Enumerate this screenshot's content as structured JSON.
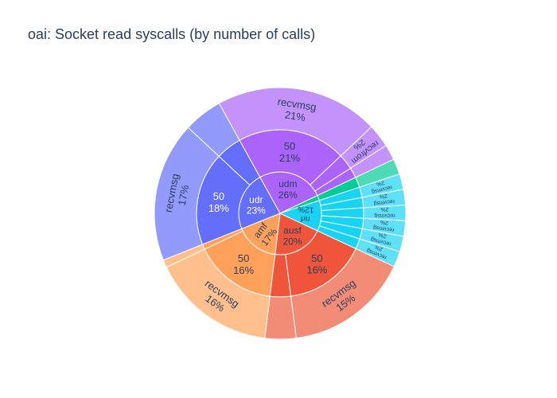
{
  "chart_data": {
    "type": "sunburst",
    "title": "oai: Socket read syscalls (by number of calls)",
    "nodes": [
      {
        "label": "ausf",
        "percent": "20%",
        "value": 20,
        "color": "#EF553B",
        "children": [
          {
            "label": "50",
            "percent": "16%",
            "value": 16,
            "color": "#EF553B",
            "children": [
              {
                "label": "recvmsg",
                "percent": "15%",
                "value": 15,
                "color": "#F28C77"
              }
            ]
          },
          {
            "label": "",
            "percent": "",
            "value": 4,
            "color": "#EF553B",
            "children": [
              {
                "label": "",
                "percent": "",
                "value": 4,
                "color": "#F28C77"
              }
            ]
          }
        ]
      },
      {
        "label": "amf",
        "percent": "17%",
        "value": 17,
        "color": "#FFA15A",
        "children": [
          {
            "label": "50",
            "percent": "16%",
            "value": 16,
            "color": "#FFA15A",
            "children": [
              {
                "label": "recvmsg",
                "percent": "16%",
                "value": 16,
                "color": "#FFC08E"
              }
            ]
          },
          {
            "label": "",
            "percent": "",
            "value": 1,
            "color": "#FFA15A",
            "children": [
              {
                "label": "",
                "percent": "",
                "value": 1,
                "color": "#FFC08E"
              }
            ]
          }
        ]
      },
      {
        "label": "udr",
        "percent": "23%",
        "value": 23,
        "color": "#636EFA",
        "children": [
          {
            "label": "50",
            "percent": "18%",
            "value": 18,
            "color": "#636EFA",
            "children": [
              {
                "label": "recvmsg",
                "percent": "17%",
                "value": 17,
                "color": "#929AFB"
              }
            ]
          },
          {
            "label": "",
            "percent": "",
            "value": 5,
            "color": "#636EFA",
            "children": [
              {
                "label": "",
                "percent": "",
                "value": 5,
                "color": "#929AFB"
              }
            ]
          }
        ]
      },
      {
        "label": "udm",
        "percent": "26%",
        "value": 26,
        "color": "#AB63FA",
        "children": [
          {
            "label": "50",
            "percent": "21%",
            "value": 21,
            "color": "#AB63FA",
            "children": [
              {
                "label": "recvmsg",
                "percent": "21%",
                "value": 21,
                "color": "#C492FB"
              }
            ]
          },
          {
            "label": "",
            "percent": "",
            "value": 3,
            "color": "#AB63FA",
            "children": [
              {
                "label": "recvfrom",
                "percent": "2%",
                "value": 2,
                "color": "#C492FB"
              }
            ]
          },
          {
            "label": "",
            "percent": "",
            "value": 2,
            "color": "#AB63FA",
            "children": [
              {
                "label": "",
                "percent": "",
                "value": 2,
                "color": "#C492FB"
              }
            ]
          }
        ]
      },
      {
        "label": "",
        "percent": "",
        "value": 2,
        "color": "#00CC96",
        "children": [
          {
            "label": "",
            "percent": "",
            "value": 2,
            "color": "#00CC96",
            "children": [
              {
                "label": "",
                "percent": "",
                "value": 2,
                "color": "#4DDBB6"
              }
            ]
          }
        ]
      },
      {
        "label": "nrf",
        "percent": "12%",
        "value": 12,
        "color": "#19D3F3",
        "children": [
          {
            "label": "",
            "percent": "",
            "value": 2,
            "color": "#19D3F3",
            "children": [
              {
                "label": "recvmsg",
                "percent": "2%",
                "value": 2,
                "color": "#5EE0F7"
              }
            ]
          },
          {
            "label": "",
            "percent": "",
            "value": 2,
            "color": "#19D3F3",
            "children": [
              {
                "label": "recvmsg",
                "percent": "2%",
                "value": 2,
                "color": "#5EE0F7"
              }
            ]
          },
          {
            "label": "",
            "percent": "",
            "value": 2,
            "color": "#19D3F3",
            "children": [
              {
                "label": "recvmsg",
                "percent": "2%",
                "value": 2,
                "color": "#5EE0F7"
              }
            ]
          },
          {
            "label": "",
            "percent": "",
            "value": 2,
            "color": "#19D3F3",
            "children": [
              {
                "label": "recvmsg",
                "percent": "2%",
                "value": 2,
                "color": "#5EE0F7"
              }
            ]
          },
          {
            "label": "",
            "percent": "",
            "value": 2,
            "color": "#19D3F3",
            "children": [
              {
                "label": "recvmsg",
                "percent": "2%",
                "value": 2,
                "color": "#5EE0F7"
              }
            ]
          },
          {
            "label": "",
            "percent": "",
            "value": 2,
            "color": "#19D3F3",
            "children": [
              {
                "label": "recvmsg",
                "percent": "2%",
                "value": 2,
                "color": "#5EE0F7"
              }
            ]
          }
        ]
      }
    ]
  }
}
